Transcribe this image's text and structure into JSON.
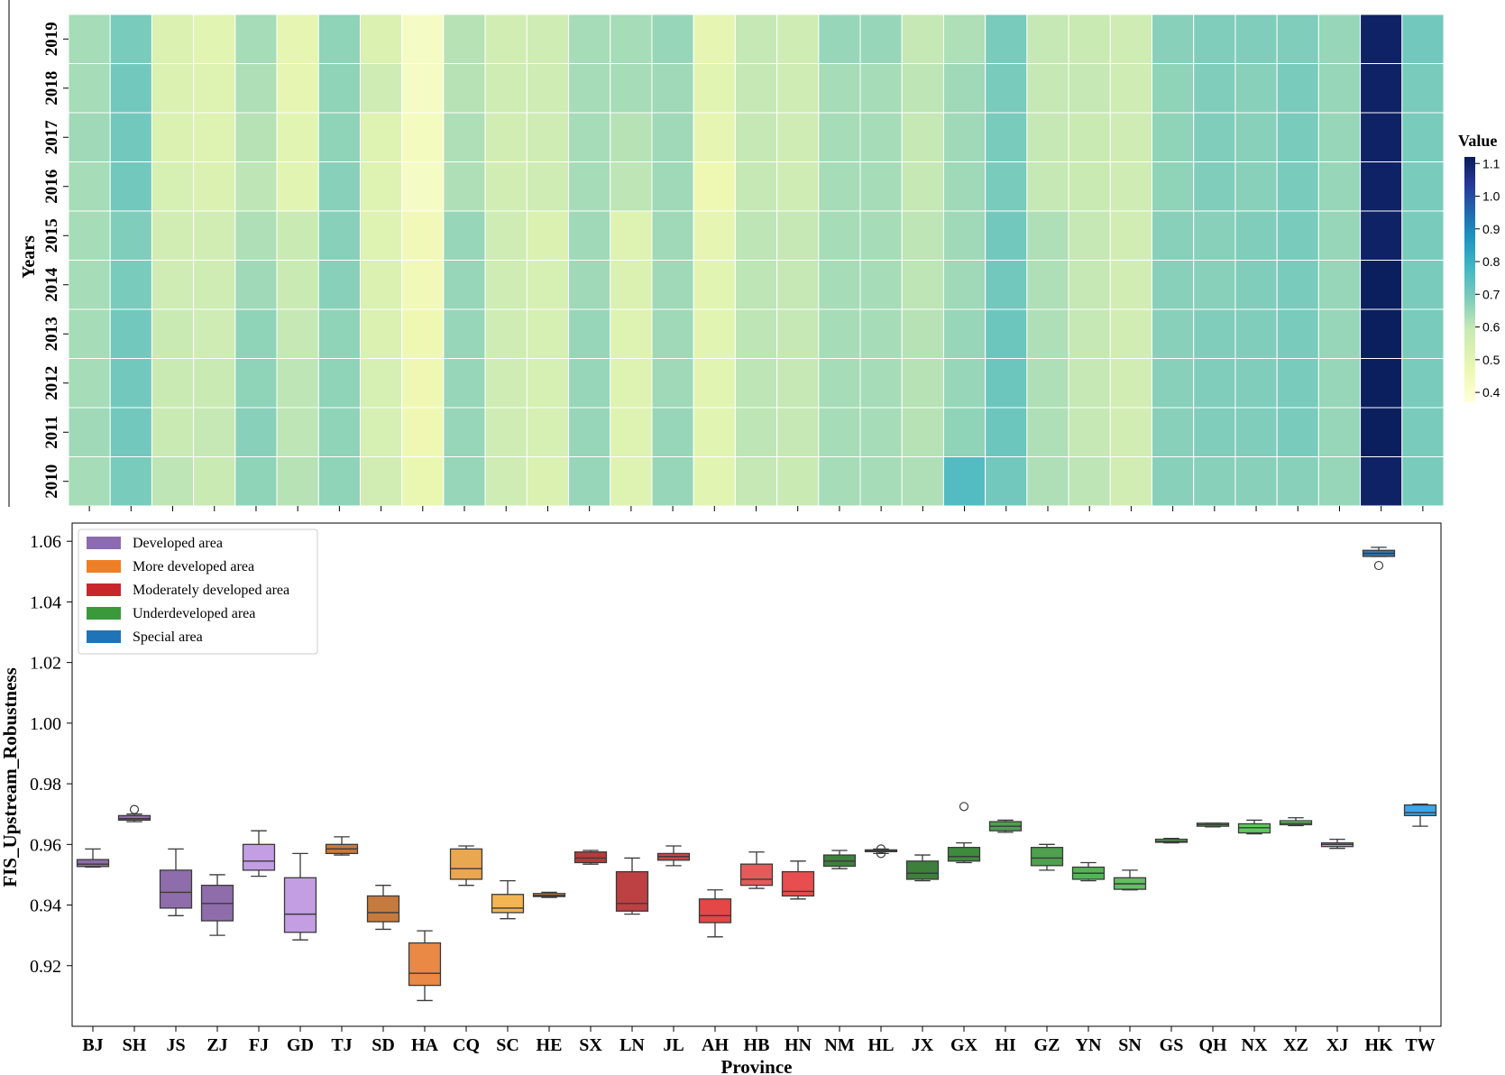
{
  "chart_data": [
    {
      "type": "heatmap",
      "ylabel": "Years",
      "years": [
        "2010",
        "2011",
        "2012",
        "2013",
        "2014",
        "2015",
        "2016",
        "2017",
        "2018",
        "2019"
      ],
      "provinces": [
        "BJ",
        "SH",
        "JS",
        "ZJ",
        "FJ",
        "GD",
        "TJ",
        "SD",
        "HA",
        "CQ",
        "SC",
        "HE",
        "SX",
        "LN",
        "JL",
        "AH",
        "HB",
        "HN",
        "NM",
        "HL",
        "JX",
        "GX",
        "HI",
        "GZ",
        "YN",
        "SN",
        "GS",
        "QH",
        "NX",
        "XZ",
        "XJ",
        "HK",
        "TW"
      ],
      "colorbar": {
        "title": "Value",
        "ticks": [
          1.1,
          1.0,
          0.9,
          0.8,
          0.7,
          0.6,
          0.5,
          0.4
        ],
        "tick_labels": [
          "1.1",
          "1.0",
          "0.9",
          "0.8",
          "0.7",
          "0.6",
          "0.5",
          "0.4"
        ],
        "range": [
          0.37,
          1.12
        ]
      },
      "colormap": [
        "#ffffd9",
        "#edf8b1",
        "#c7e9b4",
        "#7fcdbb",
        "#41b6c4",
        "#1d91c0",
        "#225ea8",
        "#253494",
        "#081d58"
      ],
      "values_by_year": {
        "2010": [
          0.6,
          0.66,
          0.57,
          0.55,
          0.63,
          0.58,
          0.63,
          0.53,
          0.47,
          0.62,
          0.54,
          0.51,
          0.62,
          0.5,
          0.62,
          0.49,
          0.56,
          0.55,
          0.6,
          0.6,
          0.59,
          0.72,
          0.67,
          0.59,
          0.57,
          0.53,
          0.64,
          0.64,
          0.64,
          0.64,
          0.62,
          1.1,
          0.66
        ],
        "2011": [
          0.61,
          0.67,
          0.55,
          0.56,
          0.64,
          0.57,
          0.63,
          0.52,
          0.46,
          0.62,
          0.54,
          0.52,
          0.62,
          0.5,
          0.62,
          0.49,
          0.57,
          0.56,
          0.6,
          0.6,
          0.58,
          0.63,
          0.68,
          0.59,
          0.56,
          0.53,
          0.64,
          0.65,
          0.65,
          0.66,
          0.62,
          1.11,
          0.66
        ],
        "2012": [
          0.6,
          0.67,
          0.55,
          0.55,
          0.63,
          0.57,
          0.63,
          0.52,
          0.46,
          0.62,
          0.54,
          0.52,
          0.62,
          0.5,
          0.61,
          0.49,
          0.57,
          0.56,
          0.6,
          0.6,
          0.58,
          0.62,
          0.68,
          0.59,
          0.56,
          0.53,
          0.64,
          0.65,
          0.65,
          0.66,
          0.62,
          1.11,
          0.66
        ],
        "2013": [
          0.6,
          0.67,
          0.55,
          0.54,
          0.63,
          0.56,
          0.63,
          0.51,
          0.46,
          0.62,
          0.54,
          0.52,
          0.62,
          0.5,
          0.61,
          0.49,
          0.57,
          0.56,
          0.6,
          0.6,
          0.58,
          0.62,
          0.68,
          0.59,
          0.56,
          0.53,
          0.64,
          0.65,
          0.65,
          0.66,
          0.62,
          1.11,
          0.66
        ],
        "2014": [
          0.6,
          0.66,
          0.54,
          0.54,
          0.61,
          0.55,
          0.64,
          0.51,
          0.45,
          0.62,
          0.54,
          0.52,
          0.61,
          0.51,
          0.61,
          0.49,
          0.57,
          0.56,
          0.6,
          0.6,
          0.57,
          0.61,
          0.67,
          0.59,
          0.56,
          0.53,
          0.64,
          0.64,
          0.65,
          0.66,
          0.62,
          1.11,
          0.66
        ],
        "2015": [
          0.6,
          0.65,
          0.53,
          0.53,
          0.59,
          0.55,
          0.64,
          0.5,
          0.45,
          0.62,
          0.54,
          0.51,
          0.61,
          0.5,
          0.61,
          0.48,
          0.57,
          0.56,
          0.6,
          0.6,
          0.57,
          0.61,
          0.67,
          0.59,
          0.56,
          0.53,
          0.64,
          0.64,
          0.65,
          0.66,
          0.62,
          1.1,
          0.66
        ],
        "2016": [
          0.6,
          0.67,
          0.52,
          0.51,
          0.57,
          0.49,
          0.64,
          0.5,
          0.42,
          0.59,
          0.53,
          0.54,
          0.6,
          0.57,
          0.61,
          0.46,
          0.56,
          0.54,
          0.6,
          0.6,
          0.56,
          0.61,
          0.66,
          0.56,
          0.55,
          0.54,
          0.63,
          0.65,
          0.64,
          0.66,
          0.62,
          1.1,
          0.66
        ],
        "2017": [
          0.61,
          0.67,
          0.51,
          0.5,
          0.58,
          0.49,
          0.63,
          0.5,
          0.43,
          0.59,
          0.53,
          0.54,
          0.6,
          0.58,
          0.61,
          0.48,
          0.56,
          0.54,
          0.6,
          0.6,
          0.56,
          0.61,
          0.66,
          0.56,
          0.55,
          0.54,
          0.63,
          0.65,
          0.64,
          0.66,
          0.62,
          1.1,
          0.66
        ],
        "2018": [
          0.6,
          0.67,
          0.51,
          0.5,
          0.59,
          0.48,
          0.63,
          0.54,
          0.42,
          0.58,
          0.54,
          0.54,
          0.6,
          0.6,
          0.61,
          0.49,
          0.56,
          0.54,
          0.6,
          0.6,
          0.57,
          0.61,
          0.66,
          0.56,
          0.56,
          0.54,
          0.63,
          0.65,
          0.64,
          0.66,
          0.62,
          1.1,
          0.66
        ],
        "2019": [
          0.6,
          0.66,
          0.51,
          0.49,
          0.6,
          0.48,
          0.63,
          0.51,
          0.42,
          0.58,
          0.53,
          0.54,
          0.6,
          0.6,
          0.62,
          0.48,
          0.56,
          0.54,
          0.62,
          0.62,
          0.56,
          0.59,
          0.66,
          0.56,
          0.55,
          0.54,
          0.64,
          0.65,
          0.65,
          0.65,
          0.62,
          1.1,
          0.67
        ]
      }
    },
    {
      "type": "boxplot",
      "xlabel": "Province",
      "ylabel": "FIS_Upstream_Robustness",
      "ylim": [
        0.9,
        1.066
      ],
      "yticks": [
        0.92,
        0.94,
        0.96,
        0.98,
        1.0,
        1.02,
        1.04,
        1.06
      ],
      "ytick_labels": [
        "0.92",
        "0.94",
        "0.96",
        "0.98",
        "1.00",
        "1.02",
        "1.04",
        "1.06"
      ],
      "legend": {
        "position": "top-left",
        "entries": [
          {
            "label": "Developed area",
            "color": "#8c6bb1"
          },
          {
            "label": "More developed area",
            "color": "#ee7f26"
          },
          {
            "label": "Moderately developed area",
            "color": "#c8282c"
          },
          {
            "label": "Underdeveloped area",
            "color": "#3a9a3a"
          },
          {
            "label": "Special area",
            "color": "#1f74b8"
          }
        ]
      },
      "boxes": [
        {
          "name": "BJ",
          "color": "#8f6dab",
          "min": 0.9525,
          "q1": 0.9527,
          "median": 0.9535,
          "q3": 0.955,
          "max": 0.9585,
          "outliers": []
        },
        {
          "name": "SH",
          "color": "#8f6dab",
          "min": 0.9675,
          "q1": 0.968,
          "median": 0.9685,
          "q3": 0.9695,
          "max": 0.97,
          "outliers": [
            0.9715
          ]
        },
        {
          "name": "JS",
          "color": "#8f6dab",
          "min": 0.9365,
          "q1": 0.939,
          "median": 0.9442,
          "q3": 0.9515,
          "max": 0.9585,
          "outliers": []
        },
        {
          "name": "ZJ",
          "color": "#8f6dab",
          "min": 0.93,
          "q1": 0.9348,
          "median": 0.9405,
          "q3": 0.9465,
          "max": 0.95,
          "outliers": []
        },
        {
          "name": "FJ",
          "color": "#c39ee3",
          "min": 0.9495,
          "q1": 0.9515,
          "median": 0.9545,
          "q3": 0.96,
          "max": 0.9645,
          "outliers": []
        },
        {
          "name": "GD",
          "color": "#c39ee3",
          "min": 0.9285,
          "q1": 0.931,
          "median": 0.937,
          "q3": 0.949,
          "max": 0.957,
          "outliers": []
        },
        {
          "name": "TJ",
          "color": "#c77a3e",
          "min": 0.9565,
          "q1": 0.957,
          "median": 0.9585,
          "q3": 0.96,
          "max": 0.9625,
          "outliers": []
        },
        {
          "name": "SD",
          "color": "#c77a3e",
          "min": 0.932,
          "q1": 0.9345,
          "median": 0.9375,
          "q3": 0.943,
          "max": 0.9465,
          "outliers": []
        },
        {
          "name": "HA",
          "color": "#e98945",
          "min": 0.9085,
          "q1": 0.9135,
          "median": 0.9175,
          "q3": 0.9275,
          "max": 0.9315,
          "outliers": []
        },
        {
          "name": "CQ",
          "color": "#e9a750",
          "min": 0.9465,
          "q1": 0.9485,
          "median": 0.952,
          "q3": 0.9585,
          "max": 0.9595,
          "outliers": []
        },
        {
          "name": "SC",
          "color": "#f2b552",
          "min": 0.9355,
          "q1": 0.9375,
          "median": 0.939,
          "q3": 0.9435,
          "max": 0.948,
          "outliers": []
        },
        {
          "name": "HE",
          "color": "#ef9b42",
          "min": 0.9425,
          "q1": 0.9428,
          "median": 0.9432,
          "q3": 0.9438,
          "max": 0.9442,
          "outliers": []
        },
        {
          "name": "SX",
          "color": "#b83a3c",
          "min": 0.9535,
          "q1": 0.954,
          "median": 0.9555,
          "q3": 0.9575,
          "max": 0.958,
          "outliers": []
        },
        {
          "name": "LN",
          "color": "#bd4043",
          "min": 0.937,
          "q1": 0.938,
          "median": 0.9405,
          "q3": 0.951,
          "max": 0.9555,
          "outliers": []
        },
        {
          "name": "JL",
          "color": "#cc4747",
          "min": 0.953,
          "q1": 0.9548,
          "median": 0.956,
          "q3": 0.957,
          "max": 0.9595,
          "outliers": []
        },
        {
          "name": "AH",
          "color": "#e54646",
          "min": 0.9295,
          "q1": 0.9342,
          "median": 0.9365,
          "q3": 0.942,
          "max": 0.945,
          "outliers": []
        },
        {
          "name": "HB",
          "color": "#e55a5a",
          "min": 0.9455,
          "q1": 0.9465,
          "median": 0.9485,
          "q3": 0.9535,
          "max": 0.9575,
          "outliers": []
        },
        {
          "name": "HN",
          "color": "#e84e50",
          "min": 0.942,
          "q1": 0.943,
          "median": 0.9445,
          "q3": 0.951,
          "max": 0.9545,
          "outliers": []
        },
        {
          "name": "NM",
          "color": "#3f7f3f",
          "min": 0.952,
          "q1": 0.9528,
          "median": 0.9545,
          "q3": 0.9565,
          "max": 0.958,
          "outliers": []
        },
        {
          "name": "HL",
          "color": "#3f7f3f",
          "min": 0.957,
          "q1": 0.9578,
          "median": 0.958,
          "q3": 0.9582,
          "max": 0.9585,
          "outliers": [
            0.957,
            0.9585
          ]
        },
        {
          "name": "JX",
          "color": "#3d803b",
          "min": 0.948,
          "q1": 0.9485,
          "median": 0.9505,
          "q3": 0.9545,
          "max": 0.9565,
          "outliers": []
        },
        {
          "name": "GX",
          "color": "#3d8c3d",
          "min": 0.954,
          "q1": 0.9545,
          "median": 0.956,
          "q3": 0.959,
          "max": 0.9605,
          "outliers": [
            0.9725
          ]
        },
        {
          "name": "HI",
          "color": "#4ca34c",
          "min": 0.964,
          "q1": 0.9645,
          "median": 0.966,
          "q3": 0.9675,
          "max": 0.968,
          "outliers": []
        },
        {
          "name": "GZ",
          "color": "#4fa04f",
          "min": 0.9515,
          "q1": 0.953,
          "median": 0.9555,
          "q3": 0.959,
          "max": 0.96,
          "outliers": []
        },
        {
          "name": "YN",
          "color": "#55b555",
          "min": 0.948,
          "q1": 0.9485,
          "median": 0.9505,
          "q3": 0.9525,
          "max": 0.954,
          "outliers": []
        },
        {
          "name": "SN",
          "color": "#62be62",
          "min": 0.945,
          "q1": 0.9452,
          "median": 0.947,
          "q3": 0.949,
          "max": 0.9515,
          "outliers": []
        },
        {
          "name": "GS",
          "color": "#5fbf5f",
          "min": 0.9605,
          "q1": 0.9607,
          "median": 0.961,
          "q3": 0.9617,
          "max": 0.962,
          "outliers": []
        },
        {
          "name": "QH",
          "color": "#62c162",
          "min": 0.9658,
          "q1": 0.966,
          "median": 0.9665,
          "q3": 0.967,
          "max": 0.967,
          "outliers": []
        },
        {
          "name": "NX",
          "color": "#5ec95e",
          "min": 0.9635,
          "q1": 0.9638,
          "median": 0.9655,
          "q3": 0.9668,
          "max": 0.968,
          "outliers": []
        },
        {
          "name": "XZ",
          "color": "#6bd66b",
          "min": 0.9662,
          "q1": 0.9665,
          "median": 0.967,
          "q3": 0.9678,
          "max": 0.9688,
          "outliers": []
        },
        {
          "name": "XJ",
          "color": "#6bd66b",
          "min": 0.9587,
          "q1": 0.9593,
          "median": 0.96,
          "q3": 0.9605,
          "max": 0.9617,
          "outliers": []
        },
        {
          "name": "HK",
          "color": "#2b7bbb",
          "min": 1.055,
          "q1": 1.055,
          "median": 1.056,
          "q3": 1.057,
          "max": 1.058,
          "outliers": [
            1.052
          ]
        },
        {
          "name": "TW",
          "color": "#3fa5e8",
          "min": 0.966,
          "q1": 0.9695,
          "median": 0.9705,
          "q3": 0.973,
          "max": 0.9733,
          "outliers": []
        }
      ]
    }
  ]
}
